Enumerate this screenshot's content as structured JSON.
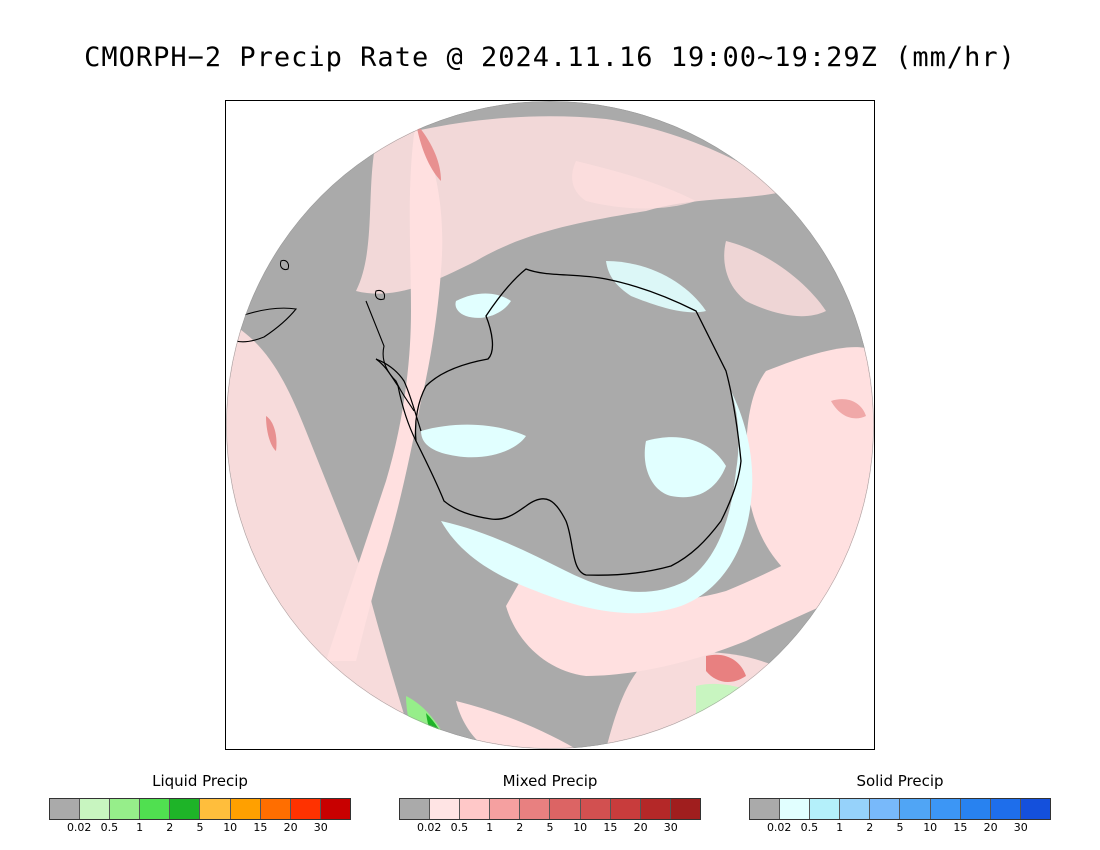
{
  "title": "CMORPH−2 Precip Rate @ 2024.11.16 19:00~19:29Z (mm/hr)",
  "map": {
    "projection": "polar-stereographic-south",
    "no_precip_color": "#aaaaaa",
    "coastline_color": "#000000"
  },
  "legends": [
    {
      "id": "liquid",
      "title": "Liquid Precip",
      "colors": [
        "#aaaaaa",
        "#c8f5c0",
        "#96ee8a",
        "#50e050",
        "#1eb428",
        "#ffbe3c",
        "#ffa000",
        "#ff6e00",
        "#ff3200",
        "#c80000"
      ],
      "ticks": [
        "0.02",
        "0.5",
        "1",
        "2",
        "5",
        "10",
        "15",
        "20",
        "30"
      ]
    },
    {
      "id": "mixed",
      "title": "Mixed Precip",
      "colors": [
        "#aaaaaa",
        "#ffe4e4",
        "#ffc8c8",
        "#f5a0a0",
        "#e88080",
        "#dc6464",
        "#d25050",
        "#c83c3c",
        "#b42828",
        "#a01e1e"
      ],
      "ticks": [
        "0.02",
        "0.5",
        "1",
        "2",
        "5",
        "10",
        "15",
        "20",
        "30"
      ]
    },
    {
      "id": "solid",
      "title": "Solid Precip",
      "colors": [
        "#aaaaaa",
        "#e1ffff",
        "#b4f0fa",
        "#96d2fa",
        "#78b9fa",
        "#50a5f5",
        "#3c96f5",
        "#2882f0",
        "#1e6eeb",
        "#1450dc"
      ],
      "ticks": [
        "0.02",
        "0.5",
        "1",
        "2",
        "5",
        "10",
        "15",
        "20",
        "30"
      ]
    }
  ]
}
